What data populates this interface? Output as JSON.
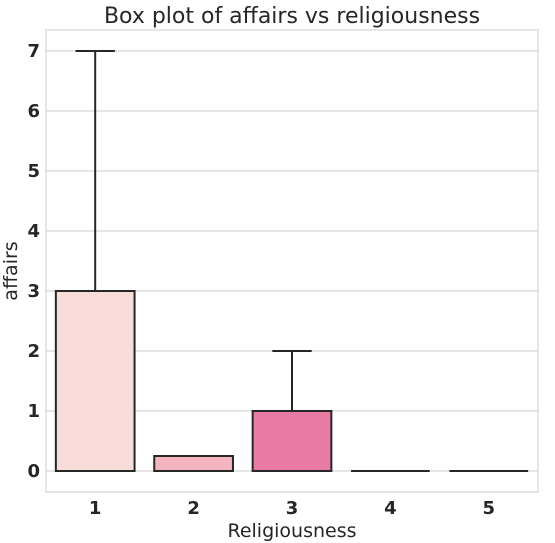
{
  "chart_data": {
    "type": "box",
    "title": "Box plot of affairs vs religiousness",
    "xlabel": "Religiousness",
    "ylabel": "affairs",
    "categories": [
      "1",
      "2",
      "3",
      "4",
      "5"
    ],
    "ylim": [
      -0.35,
      7.35
    ],
    "yticks": [
      0,
      1,
      2,
      3,
      4,
      5,
      6,
      7
    ],
    "ytick_labels": [
      "0",
      "1",
      "2",
      "3",
      "4",
      "5",
      "6",
      "7"
    ],
    "grid": true,
    "boxes": [
      {
        "category": "1",
        "min": 0,
        "q1": 0,
        "median": 0,
        "q3": 3,
        "max": 7,
        "color": "#f8dcda"
      },
      {
        "category": "2",
        "min": 0,
        "q1": 0,
        "median": 0,
        "q3": 0.25,
        "max": 0.25,
        "color": "#f5b5c0"
      },
      {
        "category": "3",
        "min": 0,
        "q1": 0,
        "median": 0,
        "q3": 1,
        "max": 2,
        "color": "#e87aa4"
      },
      {
        "category": "4",
        "min": 0,
        "q1": 0,
        "median": 0,
        "q3": 0,
        "max": 0,
        "color": "#c94b8c"
      },
      {
        "category": "5",
        "min": 0,
        "q1": 0,
        "median": 0,
        "q3": 0,
        "max": 0,
        "color": "#9a2e7e"
      }
    ]
  }
}
